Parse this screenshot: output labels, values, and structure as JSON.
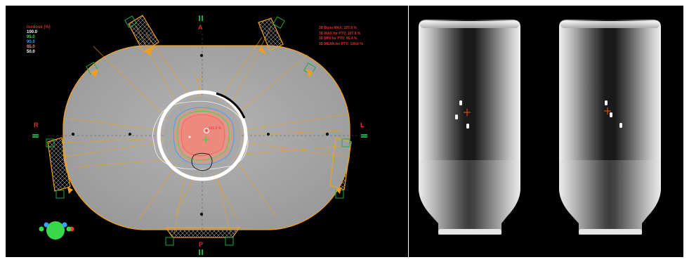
{
  "plan_view": {
    "legend": {
      "title": "Isodose (%)",
      "levels": [
        {
          "value": "100.0",
          "color": "#ffffff"
        },
        {
          "value": "95.0",
          "color": "#39d84a"
        },
        {
          "value": "90.0",
          "color": "#3aa0ff"
        },
        {
          "value": "85.0",
          "color": "#ff7a7a"
        },
        {
          "value": "50.0",
          "color": "#ffffff"
        }
      ]
    },
    "dose_stats": [
      "3D Dose MAX: 107.9 %",
      "3D MAX for PTV: 107.9 %",
      "3D MIN for PTV: 90.4 %",
      "3D MEAN for PTV: 100.0 %"
    ],
    "directions": {
      "anterior": "A",
      "posterior": "P",
      "right": "R",
      "left": "L"
    },
    "hotspot_label": "101.9 %",
    "colors": {
      "beam": "#f0a020",
      "body": "#9a9a9a",
      "ptv": "#ff6060",
      "marker": "#1fa84a"
    }
  },
  "drr_view": {
    "images": [
      {
        "name": "drr-left"
      },
      {
        "name": "drr-right"
      }
    ]
  }
}
